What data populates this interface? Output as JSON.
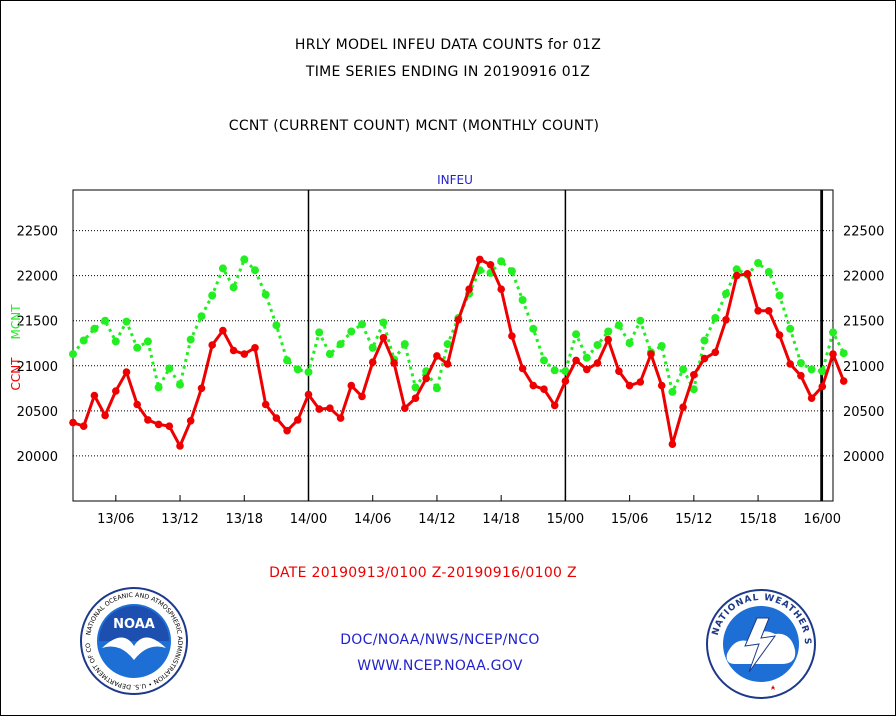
{
  "header": {
    "title_line1": "HRLY MODEL INFEU DATA COUNTS for 01Z",
    "title_line2": "TIME SERIES ENDING IN 20190916 01Z",
    "subtitle": "CCNT (CURRENT COUNT) MCNT (MONTHLY COUNT)"
  },
  "footer": {
    "date_range": "DATE 20190913/0100 Z-20190916/0100 Z",
    "org": "DOC/NOAA/NWS/NCEP/NCO",
    "url": "WWW.NCEP.NOAA.GOV"
  },
  "logos": {
    "noaa_text": "NOAA",
    "noaa_ring": "NATIONAL OCEANIC AND ATMOSPHERIC ADMINISTRATION • U.S. DEPARTMENT OF COMMERCE •",
    "nws_ring": "NATIONAL WEATHER SERVICE"
  },
  "colors": {
    "ccnt": "#ee0000",
    "mcnt": "#22ee22",
    "blue_text": "#2222cc",
    "red_text": "#ee0000"
  },
  "chart_data": {
    "type": "line",
    "title": "INFEU",
    "ylabel_left": "CCNT",
    "ylabel_right": "MCNT",
    "ylim": [
      19500,
      22950
    ],
    "yticks": [
      20000,
      20500,
      21000,
      21500,
      22000,
      22500
    ],
    "x_hours_start": 1,
    "x_hours_end": 72,
    "xticks": [
      {
        "hour": 5,
        "label": "13/06"
      },
      {
        "hour": 11,
        "label": "13/12"
      },
      {
        "hour": 17,
        "label": "13/18"
      },
      {
        "hour": 23,
        "label": "14/00"
      },
      {
        "hour": 29,
        "label": "14/06"
      },
      {
        "hour": 35,
        "label": "14/12"
      },
      {
        "hour": 41,
        "label": "14/18"
      },
      {
        "hour": 47,
        "label": "15/00"
      },
      {
        "hour": 53,
        "label": "15/06"
      },
      {
        "hour": 59,
        "label": "15/12"
      },
      {
        "hour": 65,
        "label": "15/18"
      },
      {
        "hour": 71,
        "label": "16/00"
      }
    ],
    "day_boundaries": [
      23,
      47,
      71
    ],
    "grid": true,
    "series": [
      {
        "name": "CCNT",
        "values": [
          20370,
          20330,
          20670,
          20450,
          20720,
          20930,
          20570,
          20400,
          20350,
          20330,
          20110,
          20390,
          20750,
          21230,
          21390,
          21170,
          21130,
          21200,
          20570,
          20420,
          20280,
          20400,
          20680,
          20520,
          20530,
          20420,
          20780,
          20660,
          21040,
          21310,
          21030,
          20530,
          20640,
          20860,
          21110,
          21020,
          21510,
          21850,
          22180,
          22120,
          21850,
          21330,
          20970,
          20780,
          20740,
          20560,
          20830,
          21060,
          20960,
          21030,
          21290,
          20940,
          20780,
          20820,
          21130,
          20780,
          20130,
          20540,
          20900,
          21080,
          21150,
          21510,
          22000,
          22020,
          21610,
          21610,
          21340,
          21020,
          20890,
          20640,
          20770,
          21130,
          20830
        ]
      },
      {
        "name": "MCNT",
        "values": [
          21130,
          21280,
          21410,
          21500,
          21270,
          21490,
          21200,
          21270,
          20760,
          20970,
          20790,
          21290,
          21550,
          21780,
          22080,
          21870,
          22180,
          22060,
          21790,
          21450,
          21060,
          20960,
          20930,
          21370,
          21130,
          21240,
          21380,
          21460,
          21200,
          21480,
          21070,
          21240,
          20760,
          20940,
          20750,
          21240,
          21530,
          21800,
          22060,
          22030,
          22160,
          22050,
          21730,
          21410,
          21060,
          20950,
          20940,
          21350,
          21090,
          21230,
          21380,
          21450,
          21250,
          21500,
          21150,
          21220,
          20710,
          20960,
          20740,
          21280,
          21530,
          21800,
          22070,
          22010,
          22140,
          22040,
          21780,
          21410,
          21030,
          20960,
          20940,
          21370,
          21140
        ]
      }
    ]
  }
}
